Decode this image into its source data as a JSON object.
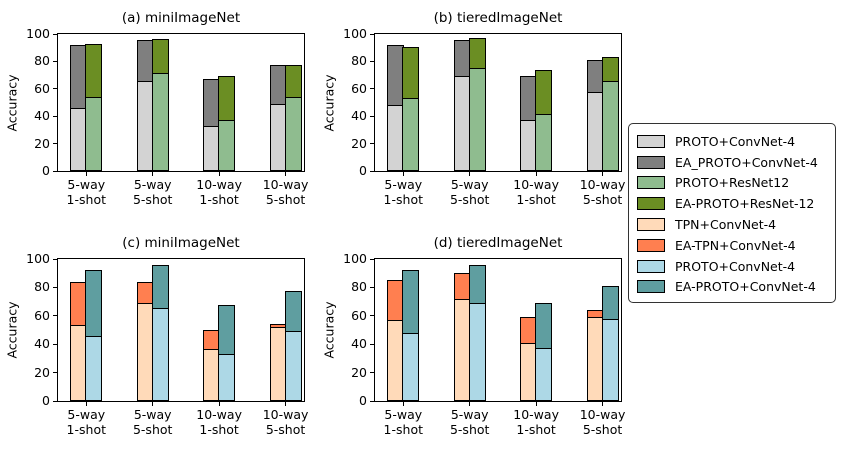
{
  "figure": {
    "ylabel": "Accuracy"
  },
  "legend": {
    "items": [
      {
        "label": "PROTO+ConvNet-4",
        "color": "#d3d3d3"
      },
      {
        "label": "EA_PROTO+ConvNet-4",
        "color": "#7f7f7f"
      },
      {
        "label": "PROTO+ResNet12",
        "color": "#8fbc8f"
      },
      {
        "label": "EA-PROTO+ResNet-12",
        "color": "#6b8e23"
      },
      {
        "label": "TPN+ConvNet-4",
        "color": "#ffdab9"
      },
      {
        "label": "EA-TPN+ConvNet-4",
        "color": "#ff7f50"
      },
      {
        "label": "PROTO+ConvNet-4",
        "color": "#add8e6"
      },
      {
        "label": "EA-PROTO+ConvNet-4",
        "color": "#5f9ea0"
      }
    ]
  },
  "chart_data": [
    {
      "id": "a",
      "type": "bar",
      "title": "(a) miniImageNet",
      "ylabel": "Accuracy",
      "ylim": [
        0,
        100
      ],
      "yticks": [
        0,
        20,
        40,
        60,
        80,
        100
      ],
      "categories": [
        "5-way\n1-shot",
        "5-way\n5-shot",
        "10-way\n1-shot",
        "10-way\n5-shot"
      ],
      "bars": [
        {
          "base_series": "PROTO+ConvNet-4",
          "base_color": "#d3d3d3",
          "base_values": [
            46,
            65.5,
            33,
            49
          ],
          "top_series": "EA_PROTO+ConvNet-4",
          "top_color": "#7f7f7f",
          "total_values": [
            93,
            96.5,
            68,
            78
          ]
        },
        {
          "base_series": "PROTO+ResNet12",
          "base_color": "#8fbc8f",
          "base_values": [
            54,
            71.5,
            37,
            54
          ],
          "top_series": "EA-PROTO+ResNet-12",
          "top_color": "#6b8e23",
          "total_values": [
            93.5,
            97,
            70,
            78
          ]
        }
      ]
    },
    {
      "id": "b",
      "type": "bar",
      "title": "(b) tieredImageNet",
      "ylabel": "Accuracy",
      "ylim": [
        0,
        100
      ],
      "yticks": [
        0,
        20,
        40,
        60,
        80,
        100
      ],
      "categories": [
        "5-way\n1-shot",
        "5-way\n5-shot",
        "10-way\n1-shot",
        "10-way\n5-shot"
      ],
      "bars": [
        {
          "base_series": "PROTO+ConvNet-4",
          "base_color": "#d3d3d3",
          "base_values": [
            48,
            69,
            37,
            58
          ],
          "top_series": "EA_PROTO+ConvNet-4",
          "top_color": "#7f7f7f",
          "total_values": [
            93,
            96.5,
            70,
            82
          ]
        },
        {
          "base_series": "PROTO+ResNet12",
          "base_color": "#8fbc8f",
          "base_values": [
            53.5,
            75,
            41.5,
            65.5
          ],
          "top_series": "EA-PROTO+ResNet-12",
          "top_color": "#6b8e23",
          "total_values": [
            91.5,
            97.5,
            74.5,
            84
          ]
        }
      ]
    },
    {
      "id": "c",
      "type": "bar",
      "title": "(c) miniImageNet",
      "ylabel": "Accuracy",
      "ylim": [
        0,
        100
      ],
      "yticks": [
        0,
        20,
        40,
        60,
        80,
        100
      ],
      "categories": [
        "5-way\n1-shot",
        "5-way\n5-shot",
        "10-way\n1-shot",
        "10-way\n5-shot"
      ],
      "bars": [
        {
          "base_series": "TPN+ConvNet-4",
          "base_color": "#ffdab9",
          "base_values": [
            53.5,
            69,
            36.5,
            52
          ],
          "top_series": "EA-TPN+ConvNet-4",
          "top_color": "#ff7f50",
          "total_values": [
            84.5,
            84.5,
            50.5,
            55
          ]
        },
        {
          "base_series": "PROTO+ConvNet-4",
          "base_color": "#add8e6",
          "base_values": [
            46,
            65.5,
            33,
            49
          ],
          "top_series": "EA-PROTO+ConvNet-4",
          "top_color": "#5f9ea0",
          "total_values": [
            93,
            96.5,
            68,
            78
          ]
        }
      ]
    },
    {
      "id": "d",
      "type": "bar",
      "title": "(d) tieredImageNet",
      "ylabel": "Accuracy",
      "ylim": [
        0,
        100
      ],
      "yticks": [
        0,
        20,
        40,
        60,
        80,
        100
      ],
      "categories": [
        "5-way\n1-shot",
        "5-way\n5-shot",
        "10-way\n1-shot",
        "10-way\n5-shot"
      ],
      "bars": [
        {
          "base_series": "TPN+ConvNet-4",
          "base_color": "#ffdab9",
          "base_values": [
            57,
            72,
            41,
            59
          ],
          "top_series": "EA-TPN+ConvNet-4",
          "top_color": "#ff7f50",
          "total_values": [
            86,
            91,
            60,
            65
          ]
        },
        {
          "base_series": "PROTO+ConvNet-4",
          "base_color": "#add8e6",
          "base_values": [
            48,
            69,
            37,
            58
          ],
          "top_series": "EA-PROTO+ConvNet-4",
          "top_color": "#5f9ea0",
          "total_values": [
            93,
            96.5,
            70,
            82
          ]
        }
      ]
    }
  ]
}
